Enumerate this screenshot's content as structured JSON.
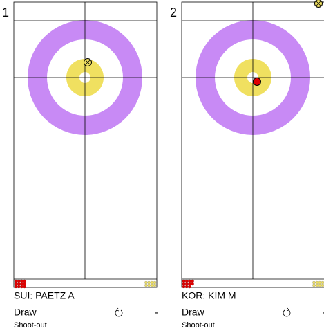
{
  "panels": [
    {
      "number": "1",
      "team": "SUI: PAETZ A",
      "shot": "Draw",
      "score": "-",
      "phase": "Shoot-out"
    },
    {
      "number": "2",
      "team": "KOR: KIM M",
      "shot": "Draw",
      "score": "-",
      "phase": "Shoot-out"
    }
  ]
}
